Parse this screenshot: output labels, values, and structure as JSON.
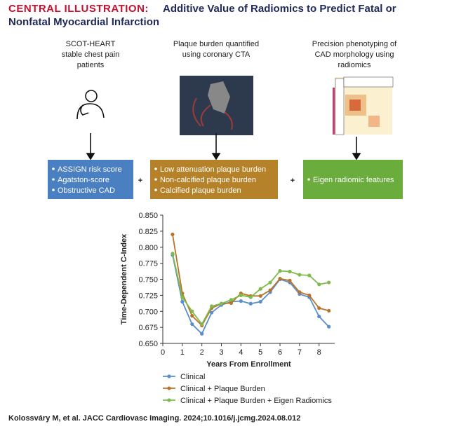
{
  "header": {
    "label": "CENTRAL ILLUSTRATION:",
    "title_lines": [
      "Additive Value of Radiomics to Predict Fatal or",
      "Nonfatal Myocardial Infarction"
    ]
  },
  "columns": [
    {
      "caption": [
        "SCOT-HEART",
        "stable chest pain",
        "patients"
      ],
      "items": [
        "ASSIGN risk score",
        "Agatston-score",
        "Obstructive CAD"
      ]
    },
    {
      "caption": [
        "Plaque burden quantified",
        "using coronary CTA"
      ],
      "items": [
        "Low attenuation plaque burden",
        "Non-calcified plaque burden",
        "Calcified plaque burden"
      ]
    },
    {
      "caption": [
        "Precision phenotyping of",
        "CAD morphology using",
        "radiomics"
      ],
      "items": [
        "Eigen radiomic features"
      ]
    }
  ],
  "plus": "+",
  "chart_data": {
    "type": "line",
    "x_label": "Years From Enrollment",
    "y_label": "Time-Dependent C-Index",
    "x": [
      0.5,
      1,
      1.5,
      2,
      2.5,
      3,
      3.5,
      4,
      4.5,
      5,
      5.5,
      6,
      6.5,
      7,
      7.5,
      8,
      8.5
    ],
    "series": [
      {
        "name": "Clinical",
        "color": "#5b8fc9",
        "values": [
          0.788,
          0.715,
          0.68,
          0.665,
          0.698,
          0.71,
          0.715,
          0.716,
          0.712,
          0.715,
          0.73,
          0.75,
          0.745,
          0.727,
          0.722,
          0.692,
          0.676
        ]
      },
      {
        "name": "Clinical + Plaque Burden",
        "color": "#b8742a",
        "values": [
          0.82,
          0.728,
          0.693,
          0.678,
          0.705,
          0.712,
          0.713,
          0.728,
          0.724,
          0.724,
          0.733,
          0.751,
          0.748,
          0.73,
          0.725,
          0.705,
          0.701
        ]
      },
      {
        "name": "Clinical + Plaque Burden + Eigen Radiomics",
        "color": "#7dbb4a",
        "values": [
          0.79,
          0.722,
          0.7,
          0.68,
          0.708,
          0.712,
          0.718,
          0.725,
          0.722,
          0.735,
          0.745,
          0.763,
          0.762,
          0.757,
          0.756,
          0.742,
          0.745
        ]
      }
    ],
    "xlim": [
      0,
      8.8
    ],
    "xticks": [
      0,
      1,
      2,
      3,
      4,
      5,
      6,
      7,
      8
    ],
    "ylim": [
      0.65,
      0.85
    ],
    "yticks": [
      {
        "value": 0.65,
        "label": "0.650"
      },
      {
        "value": 0.675,
        "label": "0.675"
      },
      {
        "value": 0.7,
        "label": "0.700"
      },
      {
        "value": 0.725,
        "label": "0.725"
      },
      {
        "value": 0.75,
        "label": "0.750"
      },
      {
        "value": 0.775,
        "label": "0.775"
      },
      {
        "value": 0.8,
        "label": "0.800"
      },
      {
        "value": 0.825,
        "label": "0.825"
      },
      {
        "value": 0.85,
        "label": "0.850"
      }
    ]
  },
  "citation": "Kolossváry M, et al. JACC Cardiovasc Imaging. 2024;10.1016/j.jcmg.2024.08.012"
}
